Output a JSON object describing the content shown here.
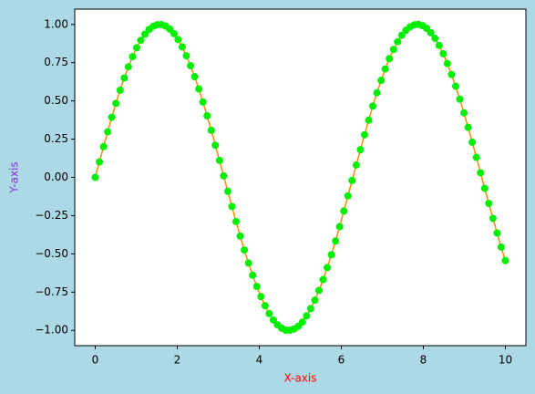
{
  "chart_data": {
    "type": "line",
    "xlabel": "X-axis",
    "ylabel": "Y-axis",
    "xlabel_color": "red",
    "ylabel_color": "#8a2be2",
    "background": "#add8e6",
    "x": [
      0,
      0.101,
      0.202,
      0.303,
      0.404,
      0.505,
      0.606,
      0.707,
      0.808,
      0.909,
      1.01,
      1.111,
      1.212,
      1.313,
      1.414,
      1.515,
      1.616,
      1.717,
      1.818,
      1.919,
      2.02,
      2.121,
      2.222,
      2.323,
      2.424,
      2.525,
      2.626,
      2.727,
      2.828,
      2.929,
      3.03,
      3.131,
      3.232,
      3.333,
      3.434,
      3.535,
      3.636,
      3.737,
      3.838,
      3.939,
      4.04,
      4.141,
      4.242,
      4.343,
      4.444,
      4.545,
      4.646,
      4.747,
      4.848,
      4.949,
      5.051,
      5.152,
      5.253,
      5.354,
      5.455,
      5.556,
      5.657,
      5.758,
      5.859,
      5.96,
      6.061,
      6.162,
      6.263,
      6.364,
      6.465,
      6.566,
      6.667,
      6.768,
      6.869,
      6.97,
      7.071,
      7.172,
      7.273,
      7.374,
      7.475,
      7.576,
      7.677,
      7.778,
      7.879,
      7.98,
      8.081,
      8.182,
      8.283,
      8.384,
      8.485,
      8.586,
      8.687,
      8.788,
      8.889,
      8.99,
      9.091,
      9.192,
      9.293,
      9.394,
      9.495,
      9.596,
      9.697,
      9.798,
      9.899,
      10.0
    ],
    "series": [
      {
        "line_color": "#ff8c00",
        "color": "#00ee00",
        "values": [
          0,
          0.101,
          0.201,
          0.298,
          0.393,
          0.484,
          0.57,
          0.65,
          0.723,
          0.789,
          0.847,
          0.896,
          0.936,
          0.967,
          0.988,
          0.998,
          0.999,
          0.989,
          0.97,
          0.94,
          0.901,
          0.853,
          0.795,
          0.73,
          0.658,
          0.578,
          0.493,
          0.403,
          0.308,
          0.21,
          0.111,
          0.01,
          -0.091,
          -0.19,
          -0.289,
          -0.384,
          -0.475,
          -0.56,
          -0.64,
          -0.713,
          -0.779,
          -0.839,
          -0.89,
          -0.932,
          -0.964,
          -0.986,
          -0.999,
          -0.999,
          -0.991,
          -0.973,
          -0.946,
          -0.905,
          -0.858,
          -0.803,
          -0.739,
          -0.668,
          -0.59,
          -0.506,
          -0.416,
          -0.322,
          -0.22,
          -0.121,
          -0.02,
          0.081,
          0.181,
          0.279,
          0.374,
          0.466,
          0.553,
          0.634,
          0.709,
          0.776,
          0.836,
          0.887,
          0.929,
          0.962,
          0.984,
          0.997,
          1.0,
          0.992,
          0.974,
          0.946,
          0.909,
          0.863,
          0.808,
          0.744,
          0.673,
          0.596,
          0.511,
          0.422,
          0.327,
          0.23,
          0.131,
          0.03,
          -0.071,
          -0.17,
          -0.268,
          -0.364,
          -0.456,
          -0.544
        ]
      }
    ],
    "xlim": [
      -0.5,
      10.5
    ],
    "ylim": [
      -1.1,
      1.1
    ],
    "xticks": [
      0,
      2,
      4,
      6,
      8,
      10
    ],
    "yticks": [
      {
        "value": -1,
        "label": "−1.00"
      },
      {
        "value": -0.75,
        "label": "−0.75"
      },
      {
        "value": -0.5,
        "label": "−0.50"
      },
      {
        "value": -0.25,
        "label": "−0.25"
      },
      {
        "value": 0,
        "label": "0.00"
      },
      {
        "value": 0.25,
        "label": "0.25"
      },
      {
        "value": 0.5,
        "label": "0.50"
      },
      {
        "value": 0.75,
        "label": "0.75"
      },
      {
        "value": 1,
        "label": "1.00"
      }
    ]
  }
}
